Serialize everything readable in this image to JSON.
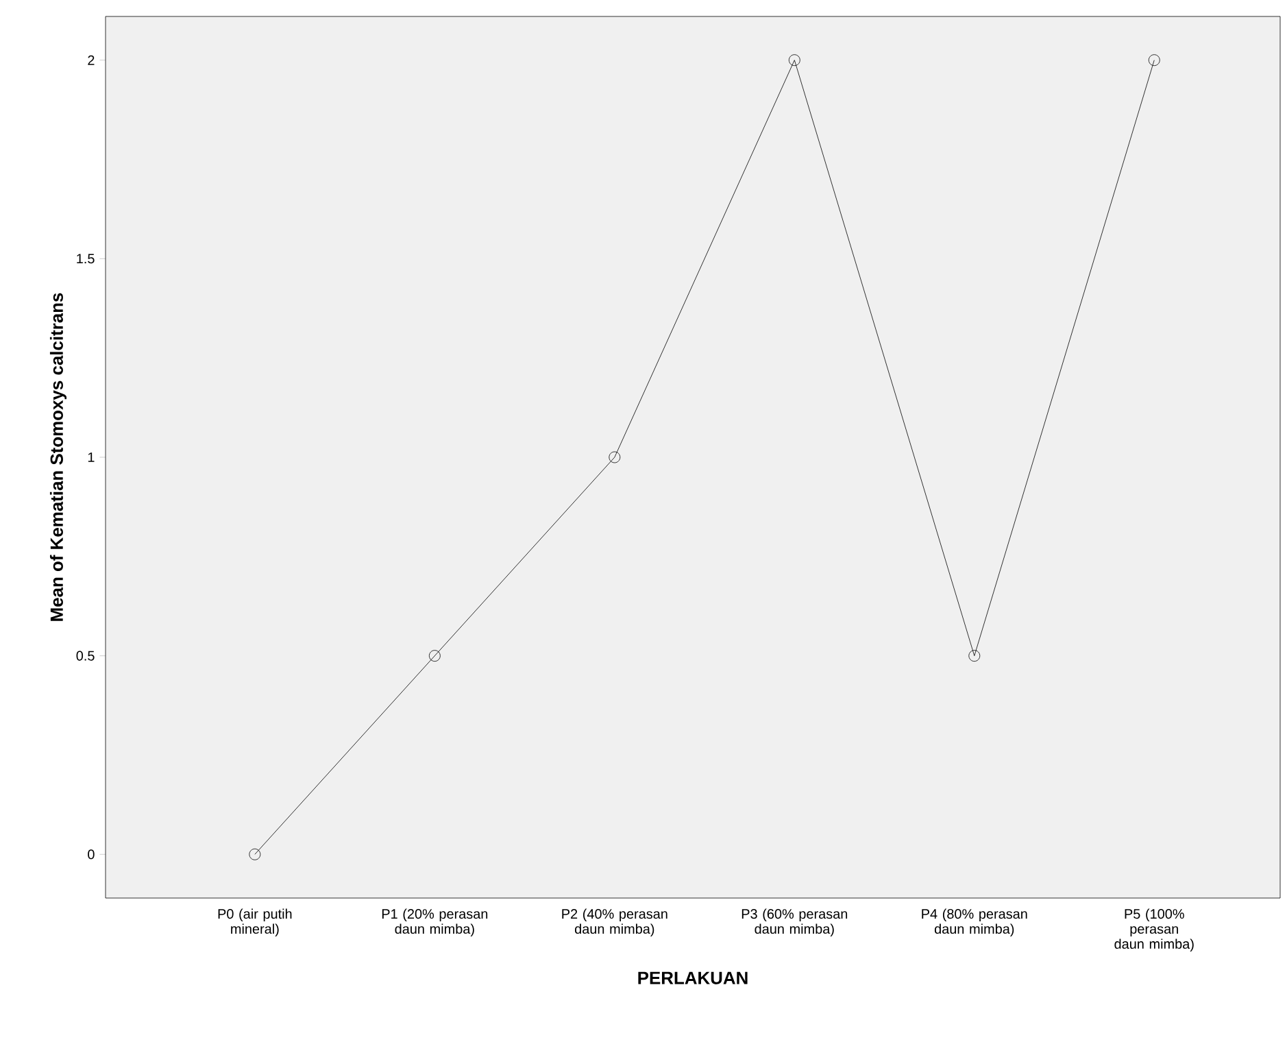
{
  "chart_data": {
    "type": "line",
    "categories": [
      "P0 (air putih mineral)",
      "P1 (20% perasan daun mimba)",
      "P2 (40% perasan daun mimba)",
      "P3 (60% perasan daun mimba)",
      "P4 (80% perasan daun mimba)",
      "P5 (100% perasan daun mimba)"
    ],
    "values": [
      0,
      0.5,
      1,
      2,
      0.5,
      2
    ],
    "color": "#000000",
    "marker": "circle",
    "ylim": [
      -0.11,
      2.11
    ],
    "yticks": [
      0,
      0.5,
      1,
      1.5,
      2
    ],
    "xlabel": "PERLAKUAN",
    "ylabel": "Mean of Kematian Stomoxys calcitrans"
  }
}
